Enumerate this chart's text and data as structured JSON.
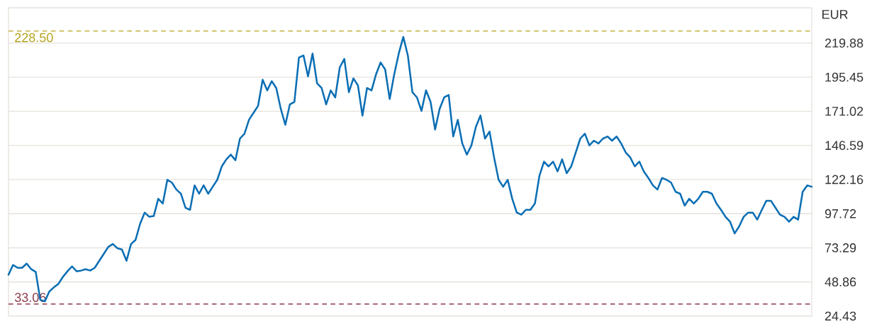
{
  "chart_data": {
    "type": "line",
    "ylabel": "EUR",
    "categories": [
      null,
      null,
      null,
      null,
      null,
      null,
      null,
      null,
      null,
      null,
      null,
      null,
      null,
      null,
      null,
      null,
      null,
      null,
      null,
      null,
      null,
      null,
      null,
      null,
      null,
      null,
      null,
      null,
      null,
      null,
      null,
      null,
      null,
      null,
      null,
      null,
      null,
      null,
      null,
      null,
      null,
      null,
      null,
      null,
      null,
      null,
      null,
      null,
      null,
      null,
      null,
      null,
      null,
      null,
      null,
      null,
      null,
      null,
      null,
      null,
      null,
      null,
      null,
      null,
      null,
      null,
      null,
      null,
      null,
      null,
      null,
      null,
      null,
      null,
      null,
      null,
      null,
      null,
      null,
      null,
      null,
      null,
      null,
      null,
      null,
      null,
      null,
      null,
      null,
      null,
      null,
      null,
      null,
      null,
      null,
      null,
      null,
      null,
      null,
      null,
      null,
      null,
      null,
      null,
      null,
      null,
      null,
      null,
      null,
      null,
      null,
      null,
      null,
      null,
      null,
      null,
      null,
      null,
      null,
      null,
      null,
      null,
      null,
      null,
      null,
      null,
      null,
      null,
      null,
      null,
      null,
      null,
      null,
      null,
      null,
      null,
      null,
      null,
      null,
      null,
      null,
      null,
      null,
      null,
      null,
      null,
      null,
      null,
      null,
      null,
      null,
      null,
      null,
      null,
      null,
      null,
      null,
      null,
      null,
      null,
      null,
      null,
      null,
      null,
      null,
      null,
      null,
      null,
      null,
      null,
      null,
      null,
      null,
      null,
      null,
      null,
      null,
      null
    ],
    "series": [
      {
        "color": "#0a6eb4",
        "values": [
          54,
          61,
          59,
          59,
          62,
          58,
          56,
          36,
          35,
          42,
          45,
          47.5,
          52.5,
          56.5,
          60,
          56.5,
          57,
          58,
          57,
          59,
          64,
          69,
          74,
          76,
          73,
          72,
          64,
          76,
          79,
          90.5,
          98.5,
          95.5,
          96,
          108.4,
          105,
          122,
          120,
          115,
          112,
          102,
          100.5,
          118,
          112,
          118,
          112,
          117,
          122,
          131.6,
          136.6,
          140,
          136,
          151.5,
          155,
          165,
          170,
          175,
          193.6,
          186,
          192.6,
          187.7,
          172.8,
          161.4,
          176,
          177.8,
          209.5,
          211,
          196,
          212.4,
          191,
          187.7,
          176,
          186,
          181,
          202.5,
          208.5,
          184.7,
          194.6,
          189.6,
          167.9,
          187.7,
          186,
          197.6,
          206,
          201,
          179.8,
          197.6,
          212.4,
          224.3,
          211,
          184.7,
          181,
          171.3,
          186,
          177.8,
          158,
          172.8,
          181,
          182.7,
          153,
          164.9,
          148,
          140,
          146.6,
          160,
          168,
          151.5,
          156.5,
          138,
          122,
          117,
          122,
          108.4,
          98.5,
          97,
          100.5,
          100.5,
          105,
          125,
          135,
          131.6,
          135,
          128,
          136.6,
          126.7,
          131.6,
          141.6,
          151.5,
          155,
          146.6,
          150,
          148,
          151.5,
          153,
          150,
          153,
          148,
          141.6,
          138,
          131.6,
          135,
          128,
          123.3,
          118,
          115,
          123.3,
          122,
          120,
          113.4,
          112,
          103.5,
          108.4,
          105,
          108.4,
          113.4,
          113.4,
          112,
          105,
          100.5,
          95.5,
          92,
          83.6,
          88.6,
          95.5,
          98.5,
          98.5,
          93.5,
          100.5,
          107,
          107,
          102,
          97,
          95.5,
          92,
          95.5,
          93.5,
          113.4,
          118,
          117
        ]
      }
    ],
    "ylim": [
      24.43,
      245.15
    ],
    "yticks": [
      24.43,
      48.86,
      73.29,
      97.72,
      122.16,
      146.59,
      171.02,
      195.45,
      219.88
    ],
    "ref_lines": [
      {
        "axis": "y",
        "value": 228.5,
        "label": "228.50",
        "color": "#b5a21a",
        "line_style": "dashed"
      },
      {
        "axis": "y",
        "value": 33.06,
        "label": "33.06",
        "color": "#8b3a4a",
        "line_style": "dashed"
      }
    ],
    "grid": "y",
    "tick_labels": "y",
    "line_style": "solid",
    "marker": "none"
  }
}
